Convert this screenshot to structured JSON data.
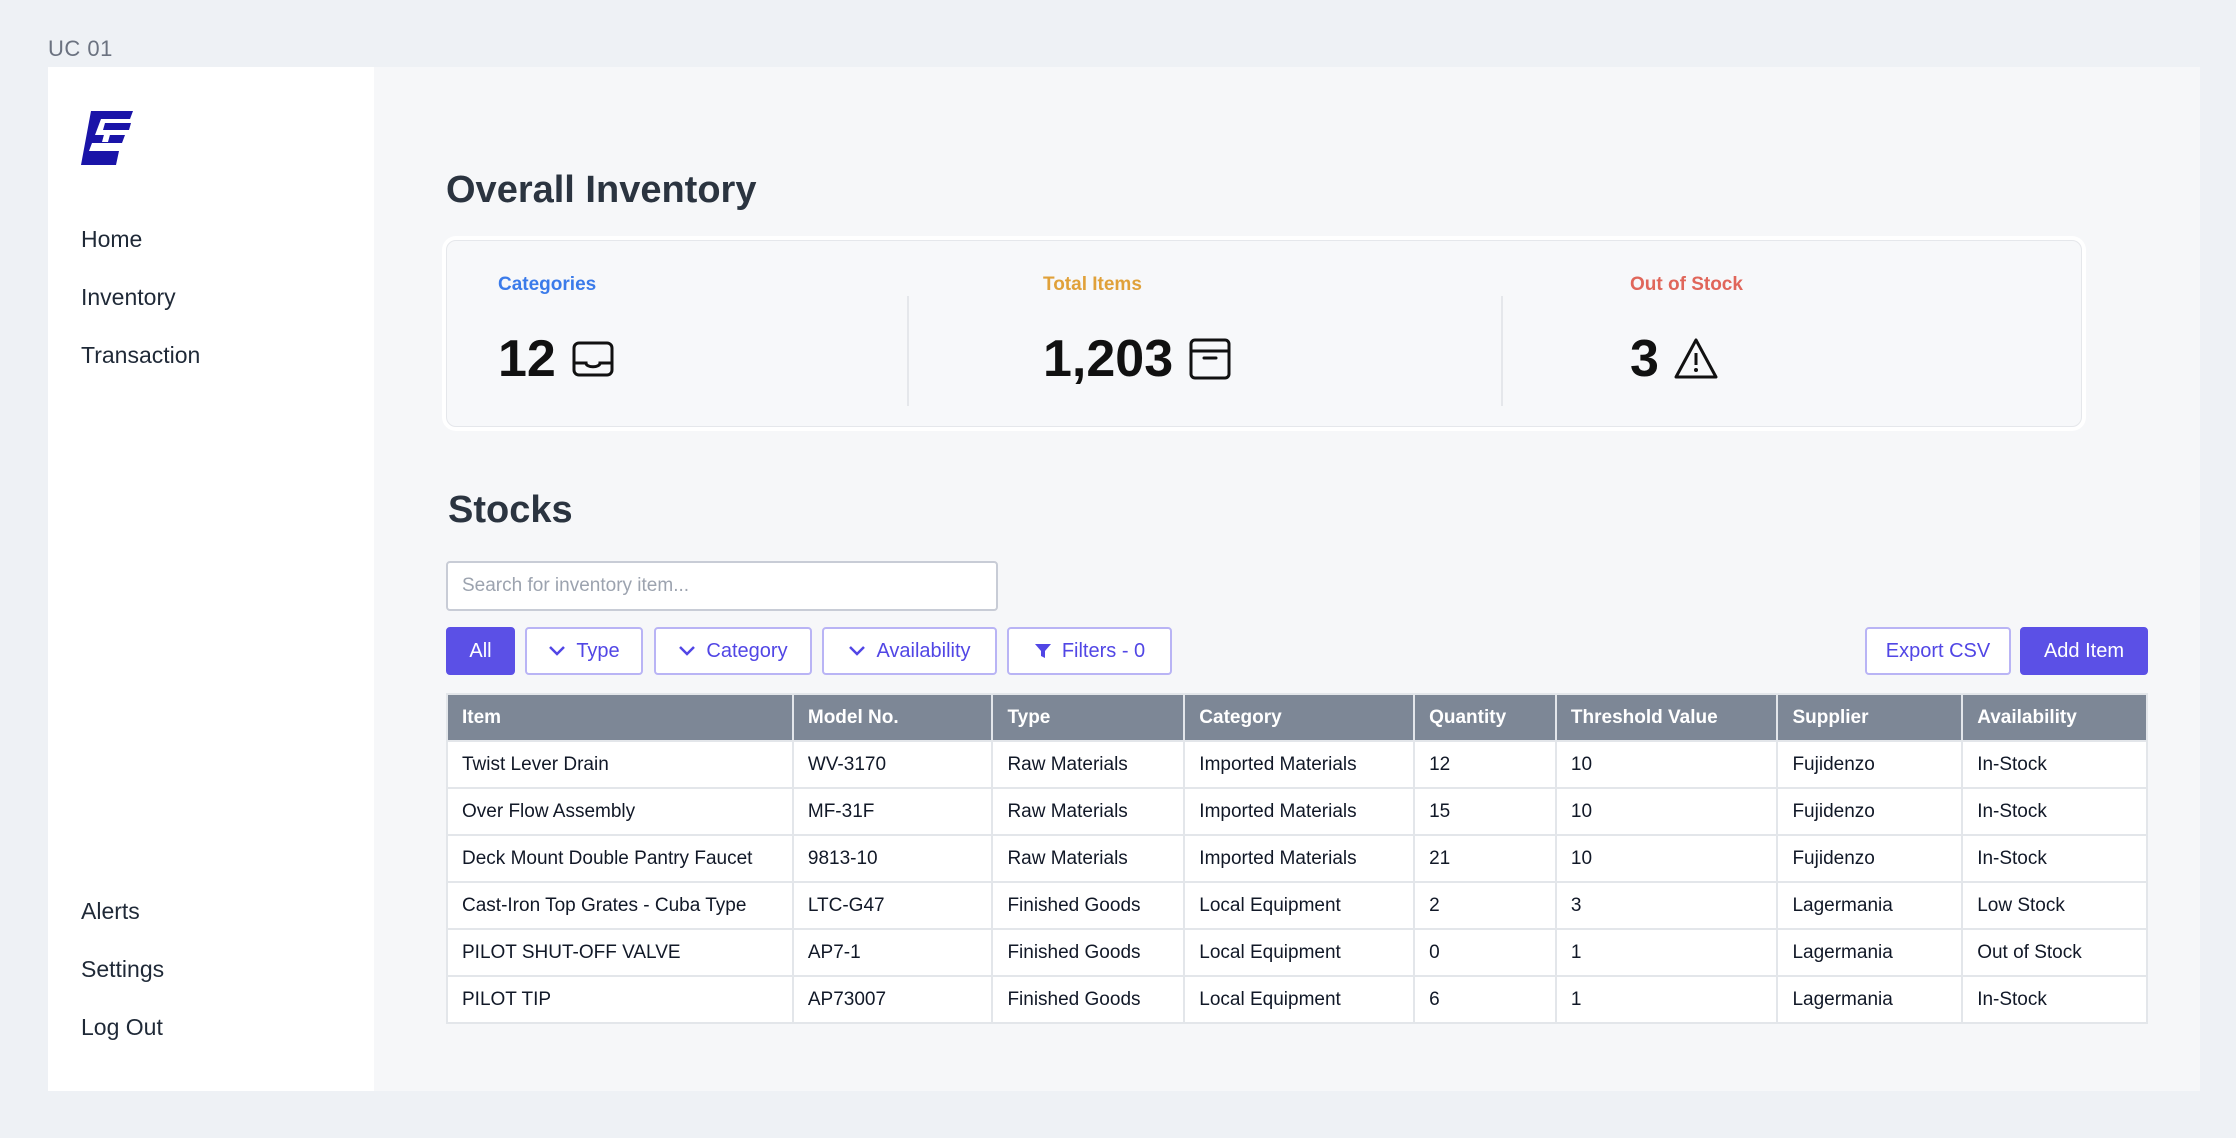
{
  "frame_label": "UC 01",
  "sidebar": {
    "logo": "brand-logo",
    "nav_top": [
      "Home",
      "Inventory",
      "Transaction"
    ],
    "nav_bottom": [
      "Alerts",
      "Settings",
      "Log Out"
    ]
  },
  "main": {
    "title": "Overall Inventory",
    "summary": [
      {
        "label": "Categories",
        "value": "12",
        "icon": "tray-icon",
        "color": "#3b7bea"
      },
      {
        "label": "Total Items",
        "value": "1,203",
        "icon": "box-icon",
        "color": "#e0a13a"
      },
      {
        "label": "Out of Stock",
        "value": "3",
        "icon": "warning-icon",
        "color": "#e0665a"
      }
    ],
    "stocks_title": "Stocks",
    "search": {
      "placeholder": "Search for inventory item...",
      "value": ""
    },
    "toolbar": {
      "all": "All",
      "type": "Type",
      "category": "Category",
      "availability": "Availability",
      "filters": "Filters - 0",
      "export": "Export CSV",
      "add": "Add Item"
    },
    "table": {
      "columns": [
        "Item",
        "Model No.",
        "Type",
        "Category",
        "Quantity",
        "Threshold Value",
        "Supplier",
        "Availability"
      ],
      "rows": [
        [
          "Twist Lever Drain",
          "WV-3170",
          "Raw Materials",
          "Imported Materials",
          "12",
          "10",
          "Fujidenzo",
          "In-Stock"
        ],
        [
          "Over Flow Assembly",
          "MF-31F",
          "Raw Materials",
          "Imported Materials",
          "15",
          "10",
          "Fujidenzo",
          "In-Stock"
        ],
        [
          "Deck Mount Double Pantry Faucet",
          "9813-10",
          "Raw Materials",
          "Imported Materials",
          "21",
          "10",
          "Fujidenzo",
          "In-Stock"
        ],
        [
          "Cast-Iron Top Grates - Cuba Type",
          "LTC-G47",
          "Finished Goods",
          "Local Equipment",
          "2",
          "3",
          "Lagermania",
          "Low Stock"
        ],
        [
          "PILOT SHUT-OFF VALVE",
          "AP7-1",
          "Finished Goods",
          "Local Equipment",
          "0",
          "1",
          "Lagermania",
          "Out of Stock"
        ],
        [
          "PILOT TIP",
          "AP73007",
          "Finished Goods",
          "Local Equipment",
          "6",
          "1",
          "Lagermania",
          "In-Stock"
        ]
      ]
    }
  },
  "colors": {
    "accent": "#5b50e6",
    "brand": "#1a14a8",
    "table_header": "#7d8796"
  }
}
